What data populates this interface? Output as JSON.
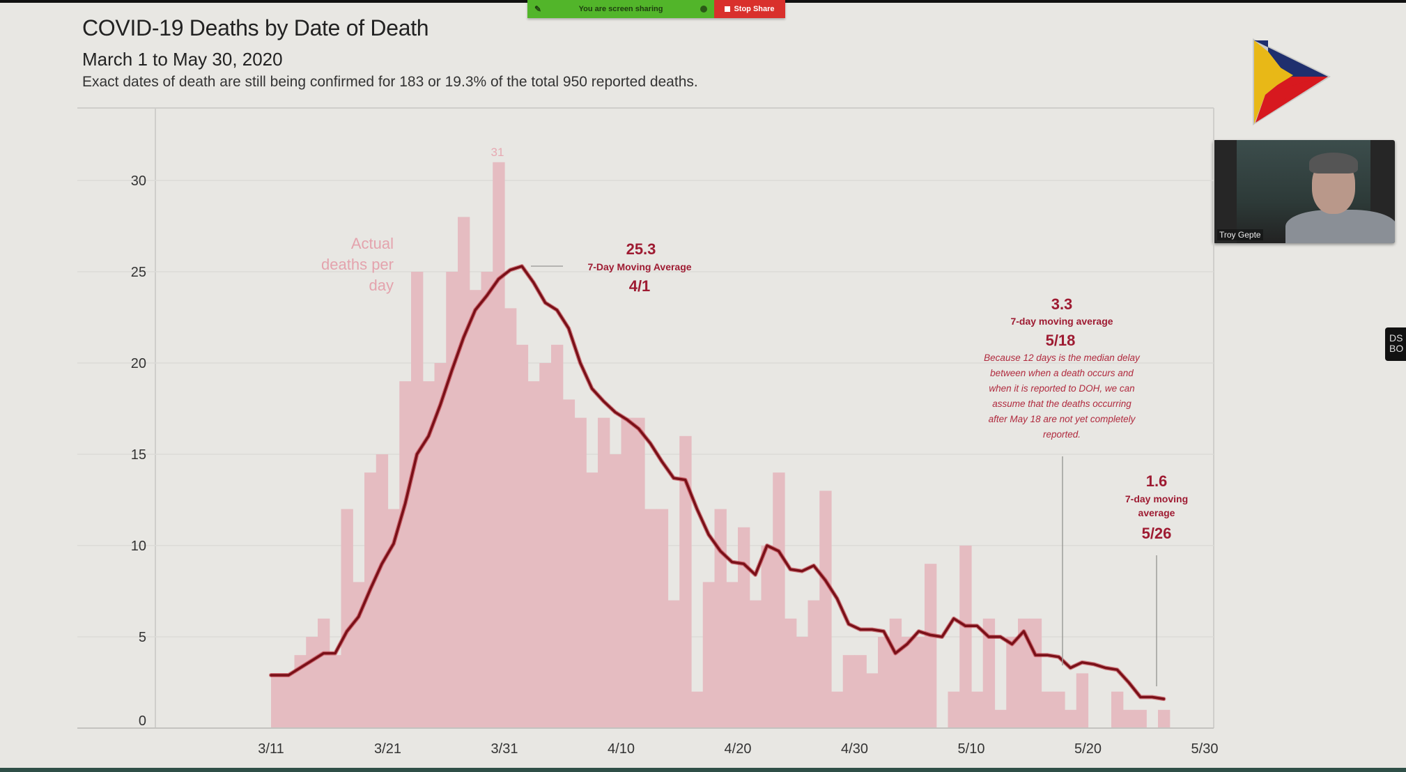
{
  "screen_share": {
    "status_label": "You are screen sharing",
    "stop_label": "Stop Share"
  },
  "header": {
    "title": "COVID-19 Deaths by Date of Death",
    "subtitle": "March 1 to May 30, 2020",
    "note": "Exact dates of death are still being confirmed for 183 or 19.3% of the total 950 reported deaths."
  },
  "video": {
    "participant_name": "Troy Gepte"
  },
  "side_tab": {
    "label": "DS BO"
  },
  "colors": {
    "bar": "#e5bcc1",
    "line": "#b8232f",
    "line_dark": "#3a0e12",
    "annotation": "#9e1b32",
    "peak_label": "#e7a9b2",
    "background": "#e8e7e3",
    "logo_blue": "#1f2f6e",
    "logo_yellow": "#e8b817",
    "logo_red": "#d7191f"
  },
  "chart_data": {
    "type": "bar",
    "title": "COVID-19 Deaths by Date of Death",
    "subtitle": "March 1 to May 30, 2020",
    "xlabel": "",
    "ylabel": "",
    "ylim": [
      0,
      33
    ],
    "yticks": [
      0,
      5,
      10,
      15,
      20,
      25,
      30
    ],
    "ytick_labels": [
      "0",
      "5",
      "10",
      "15",
      "20",
      "25",
      "30"
    ],
    "xtick_labels": [
      "3/11",
      "3/21",
      "3/31",
      "4/10",
      "4/20",
      "4/30",
      "5/10",
      "5/20",
      "5/30"
    ],
    "grid": true,
    "start_date": "3/11",
    "series": [
      {
        "name": "Actual deaths per day",
        "type": "bar",
        "values": [
          3,
          3,
          4,
          5,
          6,
          4,
          12,
          8,
          14,
          15,
          12,
          19,
          25,
          19,
          20,
          25,
          28,
          24,
          25,
          31,
          23,
          21,
          19,
          20,
          21,
          18,
          17,
          14,
          17,
          15,
          17,
          17,
          12,
          12,
          7,
          16,
          2,
          8,
          12,
          8,
          11,
          7,
          10,
          14,
          6,
          5,
          7,
          13,
          2,
          4,
          4,
          3,
          5,
          6,
          5,
          5,
          9,
          0,
          2,
          10,
          2,
          6,
          1,
          5,
          6,
          6,
          2,
          2,
          1,
          3,
          0,
          0,
          2,
          1,
          1,
          0,
          1
        ]
      },
      {
        "name": "7-Day Moving Average",
        "type": "line",
        "values": [
          2.9,
          2.9,
          3.3,
          3.7,
          4.1,
          4.1,
          5.3,
          6.1,
          7.6,
          9.0,
          10.1,
          12.3,
          15.0,
          16.0,
          17.7,
          19.6,
          21.4,
          22.9,
          23.7,
          24.6,
          25.1,
          25.3,
          24.4,
          23.3,
          22.9,
          21.9,
          20.0,
          18.6,
          17.9,
          17.3,
          16.9,
          16.4,
          15.6,
          14.6,
          13.7,
          13.6,
          12.0,
          10.6,
          9.7,
          9.1,
          9.0,
          8.4,
          10.0,
          9.7,
          8.7,
          8.6,
          8.9,
          8.1,
          7.1,
          5.7,
          5.4,
          5.4,
          5.3,
          4.1,
          4.6,
          5.3,
          5.1,
          5.0,
          6.0,
          5.6,
          5.6,
          5.0,
          5.0,
          4.6,
          5.3,
          4.0,
          4.0,
          3.9,
          3.3,
          3.6,
          3.5,
          3.3,
          3.2,
          2.5,
          1.7,
          1.7,
          1.6
        ]
      }
    ],
    "annotations": {
      "bar_label": {
        "line1": "Actual",
        "line2": "deaths per",
        "line3": "day"
      },
      "peak_bar_value": "31",
      "peak_avg": {
        "value": "25.3",
        "label": "7-Day Moving Average",
        "date": "4/1"
      },
      "may18_avg": {
        "value": "3.3",
        "label": "7-day moving average",
        "date": "5/18",
        "note_lines": [
          "Because 12 days is the median delay",
          "between when a death occurs and",
          "when it is reported to DOH, we can",
          "assume that the deaths occurring",
          "after May 18 are not yet completely",
          "reported."
        ]
      },
      "may26_avg": {
        "value": "1.6",
        "label_line1": "7-day moving",
        "label_line2": "average",
        "date": "5/26"
      }
    }
  }
}
